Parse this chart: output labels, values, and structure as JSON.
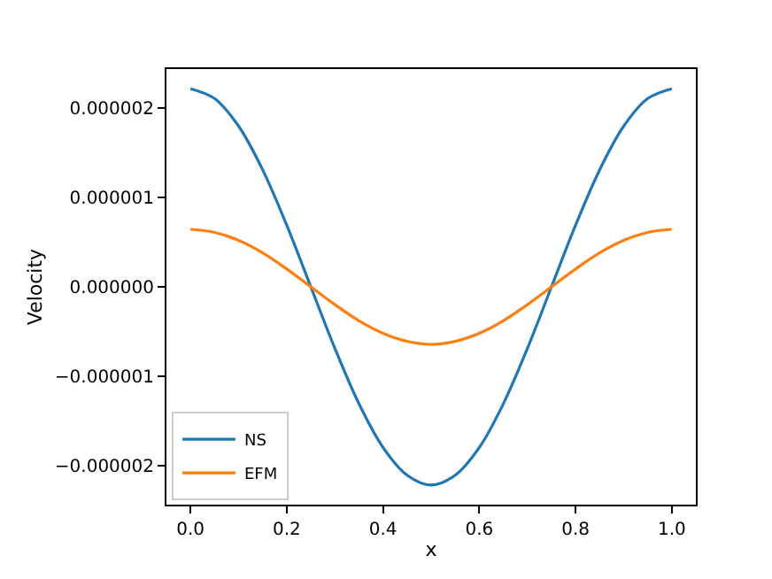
{
  "chart_data": {
    "type": "line",
    "xlabel": "x",
    "ylabel": "Velocity",
    "x": [
      0,
      0.05,
      0.1,
      0.15,
      0.2,
      0.25,
      0.3,
      0.35,
      0.4,
      0.45,
      0.5,
      0.55,
      0.6,
      0.65,
      0.7,
      0.75,
      0.8,
      0.85,
      0.9,
      0.95,
      1.0
    ],
    "series": [
      {
        "name": "NS",
        "color": "#1f77b4",
        "values": [
          2.22e-06,
          2.11e-06,
          1.8e-06,
          1.31e-06,
          6.9e-07,
          0,
          -6.9e-07,
          -1.31e-06,
          -1.8e-06,
          -2.11e-06,
          -2.22e-06,
          -2.11e-06,
          -1.8e-06,
          -1.31e-06,
          -6.9e-07,
          0,
          6.9e-07,
          1.31e-06,
          1.8e-06,
          2.11e-06,
          2.22e-06
        ]
      },
      {
        "name": "EFM",
        "color": "#ff7f0e",
        "values": [
          6.45e-07,
          6.1e-07,
          5.2e-07,
          3.8e-07,
          2e-07,
          0,
          -2e-07,
          -3.8e-07,
          -5.2e-07,
          -6.1e-07,
          -6.45e-07,
          -6.1e-07,
          -5.2e-07,
          -3.8e-07,
          -2e-07,
          0,
          2e-07,
          3.8e-07,
          5.2e-07,
          6.1e-07,
          6.45e-07
        ]
      }
    ],
    "xlim": [
      -0.05,
      1.05
    ],
    "xticks": [
      {
        "value": 0,
        "label": "0.0"
      },
      {
        "value": 0.2,
        "label": "0.2"
      },
      {
        "value": 0.4,
        "label": "0.4"
      },
      {
        "value": 0.6,
        "label": "0.6"
      },
      {
        "value": 0.8,
        "label": "0.8"
      },
      {
        "value": 1,
        "label": "1.0"
      }
    ],
    "ylim": [
      -2.44e-06,
      2.44e-06
    ],
    "yticks": [
      {
        "value": -2e-06,
        "label": "−0.000002"
      },
      {
        "value": -1e-06,
        "label": "−0.000001"
      },
      {
        "value": 0,
        "label": "0.000000"
      },
      {
        "value": 1e-06,
        "label": "0.000001"
      },
      {
        "value": 2e-06,
        "label": "0.000002"
      }
    ],
    "legend": "bottom left",
    "marker": "none",
    "line_style": "solid"
  }
}
